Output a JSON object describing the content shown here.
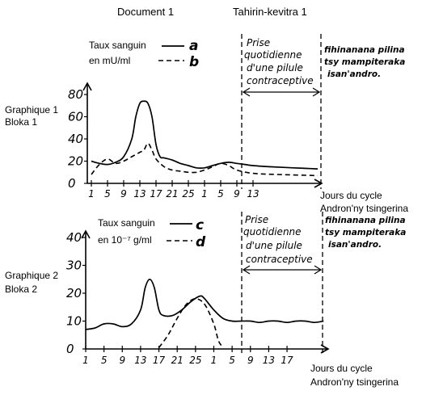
{
  "header": {
    "document_label": "Document 1",
    "section_label": "Tahirin-kevitra 1"
  },
  "chart_data": [
    {
      "type": "line",
      "title": "Graphique 1",
      "title_alt": "Bloka 1",
      "legend_title_line1": "Taux sanguin",
      "legend_title_line2": "en mU/ml",
      "xlabel": "Jours du cycle",
      "xlabel_alt": "Andron'ny tsingerina",
      "x_tick_labels": [
        "1",
        "5",
        "9",
        "13",
        "17",
        "21",
        "25",
        "1",
        "5",
        "9",
        "13"
      ],
      "y_tick_labels": [
        "0",
        "20",
        "40",
        "60",
        "80"
      ],
      "ylim": [
        0,
        90
      ],
      "annotation_lines": [
        "Prise",
        "quotidienne",
        "d'une pilule",
        "contraceptive"
      ],
      "annotation_alt_lines": [
        "fihinanana pilina",
        "tsy mampiteraka",
        "isan'andro."
      ],
      "series": [
        {
          "name": "a",
          "style": "solid",
          "points": [
            [
              1,
              20
            ],
            [
              3,
              18
            ],
            [
              5,
              17
            ],
            [
              7,
              19
            ],
            [
              9,
              24
            ],
            [
              11,
              40
            ],
            [
              12,
              60
            ],
            [
              13,
              72
            ],
            [
              14,
              74
            ],
            [
              15,
              72
            ],
            [
              16,
              60
            ],
            [
              17,
              35
            ],
            [
              18,
              24
            ],
            [
              19,
              23
            ],
            [
              21,
              21
            ],
            [
              23,
              18
            ],
            [
              25,
              16
            ],
            [
              27,
              14
            ],
            [
              29,
              14
            ],
            [
              31,
              16
            ],
            [
              33,
              18
            ],
            [
              35,
              19
            ],
            [
              37,
              18
            ],
            [
              39,
              17
            ],
            [
              41,
              16
            ],
            [
              45,
              15
            ],
            [
              51,
              14
            ],
            [
              57,
              13
            ]
          ]
        },
        {
          "name": "b",
          "style": "dashed",
          "points": [
            [
              1,
              8
            ],
            [
              3,
              17
            ],
            [
              5,
              22
            ],
            [
              7,
              18
            ],
            [
              9,
              20
            ],
            [
              11,
              24
            ],
            [
              13,
              28
            ],
            [
              14,
              30
            ],
            [
              15,
              36
            ],
            [
              16,
              30
            ],
            [
              17,
              22
            ],
            [
              19,
              15
            ],
            [
              21,
              12
            ],
            [
              23,
              11
            ],
            [
              25,
              10
            ],
            [
              27,
              10
            ],
            [
              29,
              12
            ],
            [
              31,
              15
            ],
            [
              33,
              18
            ],
            [
              35,
              16
            ],
            [
              37,
              12
            ],
            [
              41,
              9
            ],
            [
              47,
              8
            ],
            [
              57,
              7
            ]
          ]
        }
      ]
    },
    {
      "type": "line",
      "title": "Graphique 2",
      "title_alt": "Bloka 2",
      "legend_title_line1": "Taux sanguin",
      "legend_title_line2": "en 10⁻⁷ g/ml",
      "xlabel": "Jours du cycle",
      "xlabel_alt": "Andron'ny tsingerina",
      "x_tick_labels": [
        "1",
        "5",
        "9",
        "13",
        "17",
        "21",
        "25",
        "1",
        "5",
        "9",
        "13",
        "17"
      ],
      "y_tick_labels": [
        "0",
        "10",
        "20",
        "30",
        "40"
      ],
      "ylim": [
        0,
        45
      ],
      "annotation_lines": [
        "Prise",
        "quotidienne",
        "d'une pilule",
        "contraceptive"
      ],
      "annotation_alt_lines": [
        "fihinanana pilina",
        "tsy mampiteraka",
        "isan'andro."
      ],
      "series": [
        {
          "name": "c",
          "style": "solid",
          "points": [
            [
              1,
              7
            ],
            [
              3,
              7.5
            ],
            [
              5,
              9
            ],
            [
              7,
              9
            ],
            [
              9,
              8
            ],
            [
              11,
              9
            ],
            [
              13,
              14
            ],
            [
              14,
              22
            ],
            [
              15,
              25
            ],
            [
              16,
              22
            ],
            [
              17,
              14
            ],
            [
              18,
              12
            ],
            [
              20,
              12
            ],
            [
              22,
              14
            ],
            [
              24,
              17
            ],
            [
              26,
              19
            ],
            [
              27,
              18
            ],
            [
              29,
              14
            ],
            [
              31,
              11
            ],
            [
              33,
              10
            ],
            [
              35,
              10
            ],
            [
              37,
              10
            ],
            [
              39,
              9.5
            ],
            [
              41,
              10
            ],
            [
              43,
              10
            ],
            [
              45,
              9.5
            ],
            [
              47,
              10
            ],
            [
              49,
              10
            ],
            [
              51,
              9.5
            ],
            [
              53,
              10
            ]
          ]
        },
        {
          "name": "d",
          "style": "dashed",
          "points": [
            [
              17,
              0.5
            ],
            [
              19,
              5
            ],
            [
              21,
              11
            ],
            [
              23,
              16
            ],
            [
              25,
              18
            ],
            [
              27,
              16
            ],
            [
              29,
              9
            ],
            [
              30,
              3
            ],
            [
              31,
              0.5
            ]
          ]
        }
      ]
    }
  ]
}
